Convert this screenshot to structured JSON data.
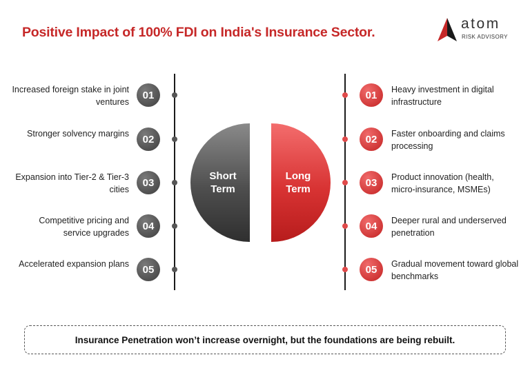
{
  "title": "Positive Impact of 100% FDI on India's Insurance Sector.",
  "logo": {
    "word": "atom",
    "sub": "RISK ADVISORY",
    "icon": "triangle-logo-icon"
  },
  "colors": {
    "accent": "#c62828",
    "grey": "#4a4a4a",
    "red": "#e04a4a"
  },
  "short_term": {
    "label_1": "Short",
    "label_2": "Term",
    "items": [
      {
        "num": "01",
        "text": "Increased foreign stake in joint ventures"
      },
      {
        "num": "02",
        "text": "Stronger solvency margins"
      },
      {
        "num": "03",
        "text": "Expansion into Tier-2 & Tier-3 cities"
      },
      {
        "num": "04",
        "text": "Competitive pricing and service upgrades"
      },
      {
        "num": "05",
        "text": "Accelerated expansion plans"
      }
    ]
  },
  "long_term": {
    "label_1": "Long",
    "label_2": "Term",
    "items": [
      {
        "num": "01",
        "text": "Heavy investment in digital infrastructure"
      },
      {
        "num": "02",
        "text": "Faster onboarding and claims processing"
      },
      {
        "num": "03",
        "text": "Product innovation (health, micro-insurance, MSMEs)"
      },
      {
        "num": "04",
        "text": "Deeper rural and underserved penetration"
      },
      {
        "num": "05",
        "text": "Gradual movement toward global benchmarks"
      }
    ]
  },
  "footer": "Insurance Penetration won’t increase overnight, but the foundations are being rebuilt."
}
